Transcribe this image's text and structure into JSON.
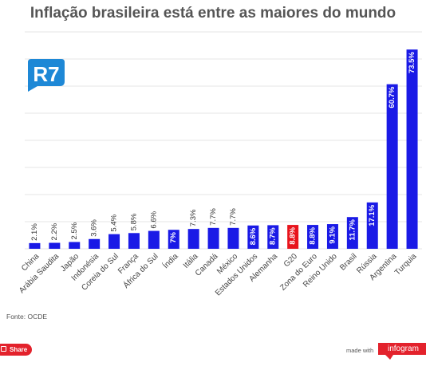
{
  "chart_data": {
    "type": "bar",
    "title": "Inflação brasileira está entre as maiores do mundo",
    "xlabel": "",
    "ylabel": "",
    "ylim": [
      0,
      80
    ],
    "grid": true,
    "categories": [
      "China",
      "Arábia Saudita",
      "Japão",
      "Indonésia",
      "Coreia do Sul",
      "França",
      "África do Sul",
      "Índia",
      "Itália",
      "Canadá",
      "México",
      "Estados Unidos",
      "Alemanha",
      "G20",
      "Zona do Euro",
      "Reino Unido",
      "Brasil",
      "Rússia",
      "Argentina",
      "Turquia"
    ],
    "values": [
      2.1,
      2.2,
      2.5,
      3.6,
      5.4,
      5.8,
      6.6,
      7.0,
      7.3,
      7.7,
      7.7,
      8.6,
      8.7,
      8.8,
      8.8,
      9.1,
      11.7,
      17.1,
      60.7,
      73.5
    ],
    "value_labels": [
      "2.1%",
      "2.2%",
      "2.5%",
      "3.6%",
      "5.4%",
      "5.8%",
      "6.6%",
      "7%",
      "7.3%",
      "7.7%",
      "7.7%",
      "8.6%",
      "8.7%",
      "8.8%",
      "8.8%",
      "9.1%",
      "11.7%",
      "17.1%",
      "60.7%",
      "73.5%"
    ],
    "highlight": "G20",
    "colors": {
      "bar": "#1a1ae6",
      "highlight": "#e8141c",
      "grid": "#e6e6e6"
    }
  },
  "logo_text": "R7",
  "source": "Fonte: OCDE",
  "footer": {
    "share_label": "Share",
    "made_with": "made with",
    "brand": "infogram"
  }
}
